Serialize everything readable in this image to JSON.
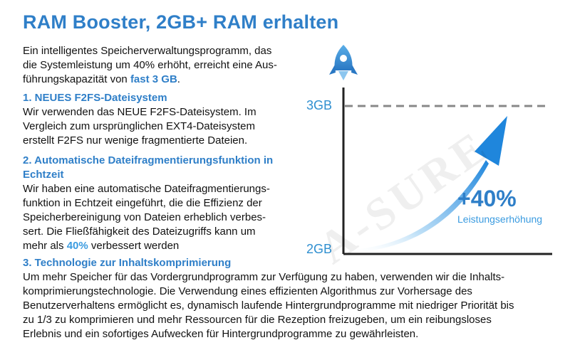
{
  "title": "RAM Booster, 2GB+ RAM erhalten",
  "intro": {
    "line1": "Ein intelligentes Speicherverwaltungsprogramm, das",
    "line2": "die Systemleistung um 40% erhöht, erreicht eine Aus-",
    "line3_pre": "führungskapazität von ",
    "line3_accent": "fast 3 GB",
    "line3_post": "."
  },
  "section1": {
    "heading": "1. NEUES F2FS-Dateisystem",
    "lines": [
      "Wir verwenden das NEUE F2FS-Dateisystem. Im",
      "Vergleich zum ursprünglichen EXT4-Dateisystem",
      "erstellt F2FS nur wenige fragmentierte Dateien."
    ]
  },
  "section2": {
    "heading_line1": "2. Automatische Dateifragmentierungsfunktion in",
    "heading_line2": "Echtzeit",
    "lines": [
      "Wir haben eine automatische Dateifragmentierungs-",
      "funktion in Echtzeit eingeführt, die die Effizienz der",
      "Speicherbereinigung von Dateien erheblich verbes-",
      "sert. Die Fließfähigkeit des Dateizugriffs kann um"
    ],
    "last_pre": "mehr als ",
    "last_accent": "40%",
    "last_post": " verbessert werden"
  },
  "section3": {
    "heading": "3. Technologie zur Inhaltskomprimierung",
    "lines": [
      "Um mehr Speicher für das Vordergrundprogramm zur Verfügung zu haben, verwenden wir die Inhalts-",
      "komprimierungstechnologie. Die Verwendung eines effizienten Algorithmus zur Vorhersage des",
      "Benutzerverhaltens ermöglicht es, dynamisch laufende Hintergrundprogramme mit niedriger Priorität bis",
      "zu 1/3 zu komprimieren und mehr Ressourcen für die Rezeption freizugeben, um ein reibungsloses",
      "Erlebnis und ein sofortiges Aufwecken für Hintergrundprogramme zu gewährleisten."
    ]
  },
  "graphic": {
    "label_top": "3GB",
    "label_bottom": "2GB",
    "percent": "+40%",
    "caption": "Leistungserhöhung"
  },
  "watermark": "A-SURE",
  "colors": {
    "accent": "#2f7fc8",
    "accent_light": "#3a9be0",
    "axis": "#222222",
    "dashed": "#888888",
    "rocket": "#3b8fd6"
  }
}
